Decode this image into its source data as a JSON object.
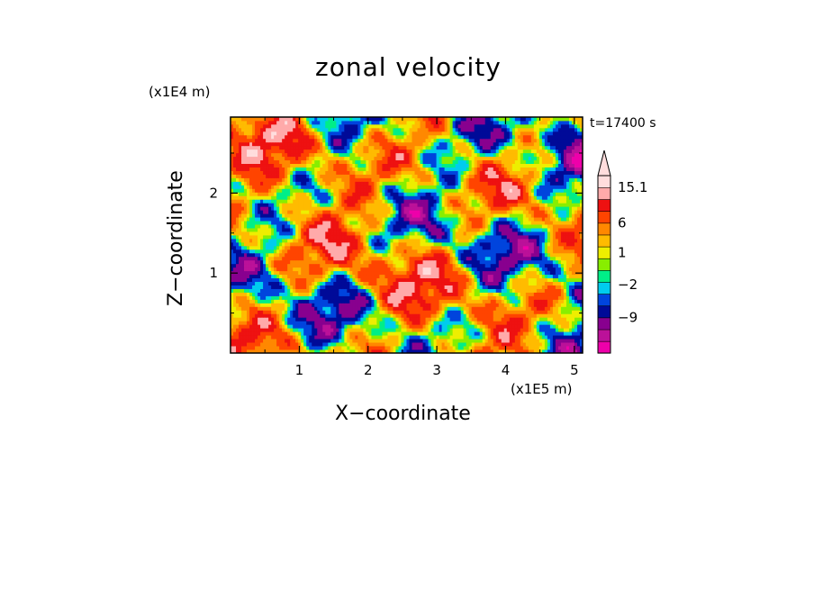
{
  "chart_data": {
    "type": "heatmap",
    "title": "zonal velocity",
    "xlabel": "X−coordinate",
    "ylabel": "Z−coordinate",
    "x_unit_label": "(x1E5 m)",
    "z_unit_label": "(x1E4 m)",
    "time_label": "t=17400 s",
    "xlim": [
      0,
      5.12
    ],
    "ylim": [
      0,
      2.95
    ],
    "x_ticks": [
      "1",
      "2",
      "3",
      "4",
      "5"
    ],
    "y_ticks": [
      "1",
      "2"
    ],
    "colorbar_labels": [
      "15.1",
      "6",
      "1",
      "−2",
      "−9"
    ],
    "colorbar_levels": [
      -15,
      -12,
      -9,
      -6,
      -4,
      -2,
      -1,
      0,
      1,
      2,
      4,
      6,
      9,
      12,
      15.1
    ],
    "colors": [
      "#ee00aa",
      "#bb1199",
      "#88008f",
      "#000a98",
      "#0044dd",
      "#00ccee",
      "#00ee88",
      "#88ee00",
      "#eeee00",
      "#ffbb00",
      "#ff8800",
      "#ff4400",
      "#ee1111",
      "#ffaaaa",
      "#ffdddd"
    ]
  }
}
